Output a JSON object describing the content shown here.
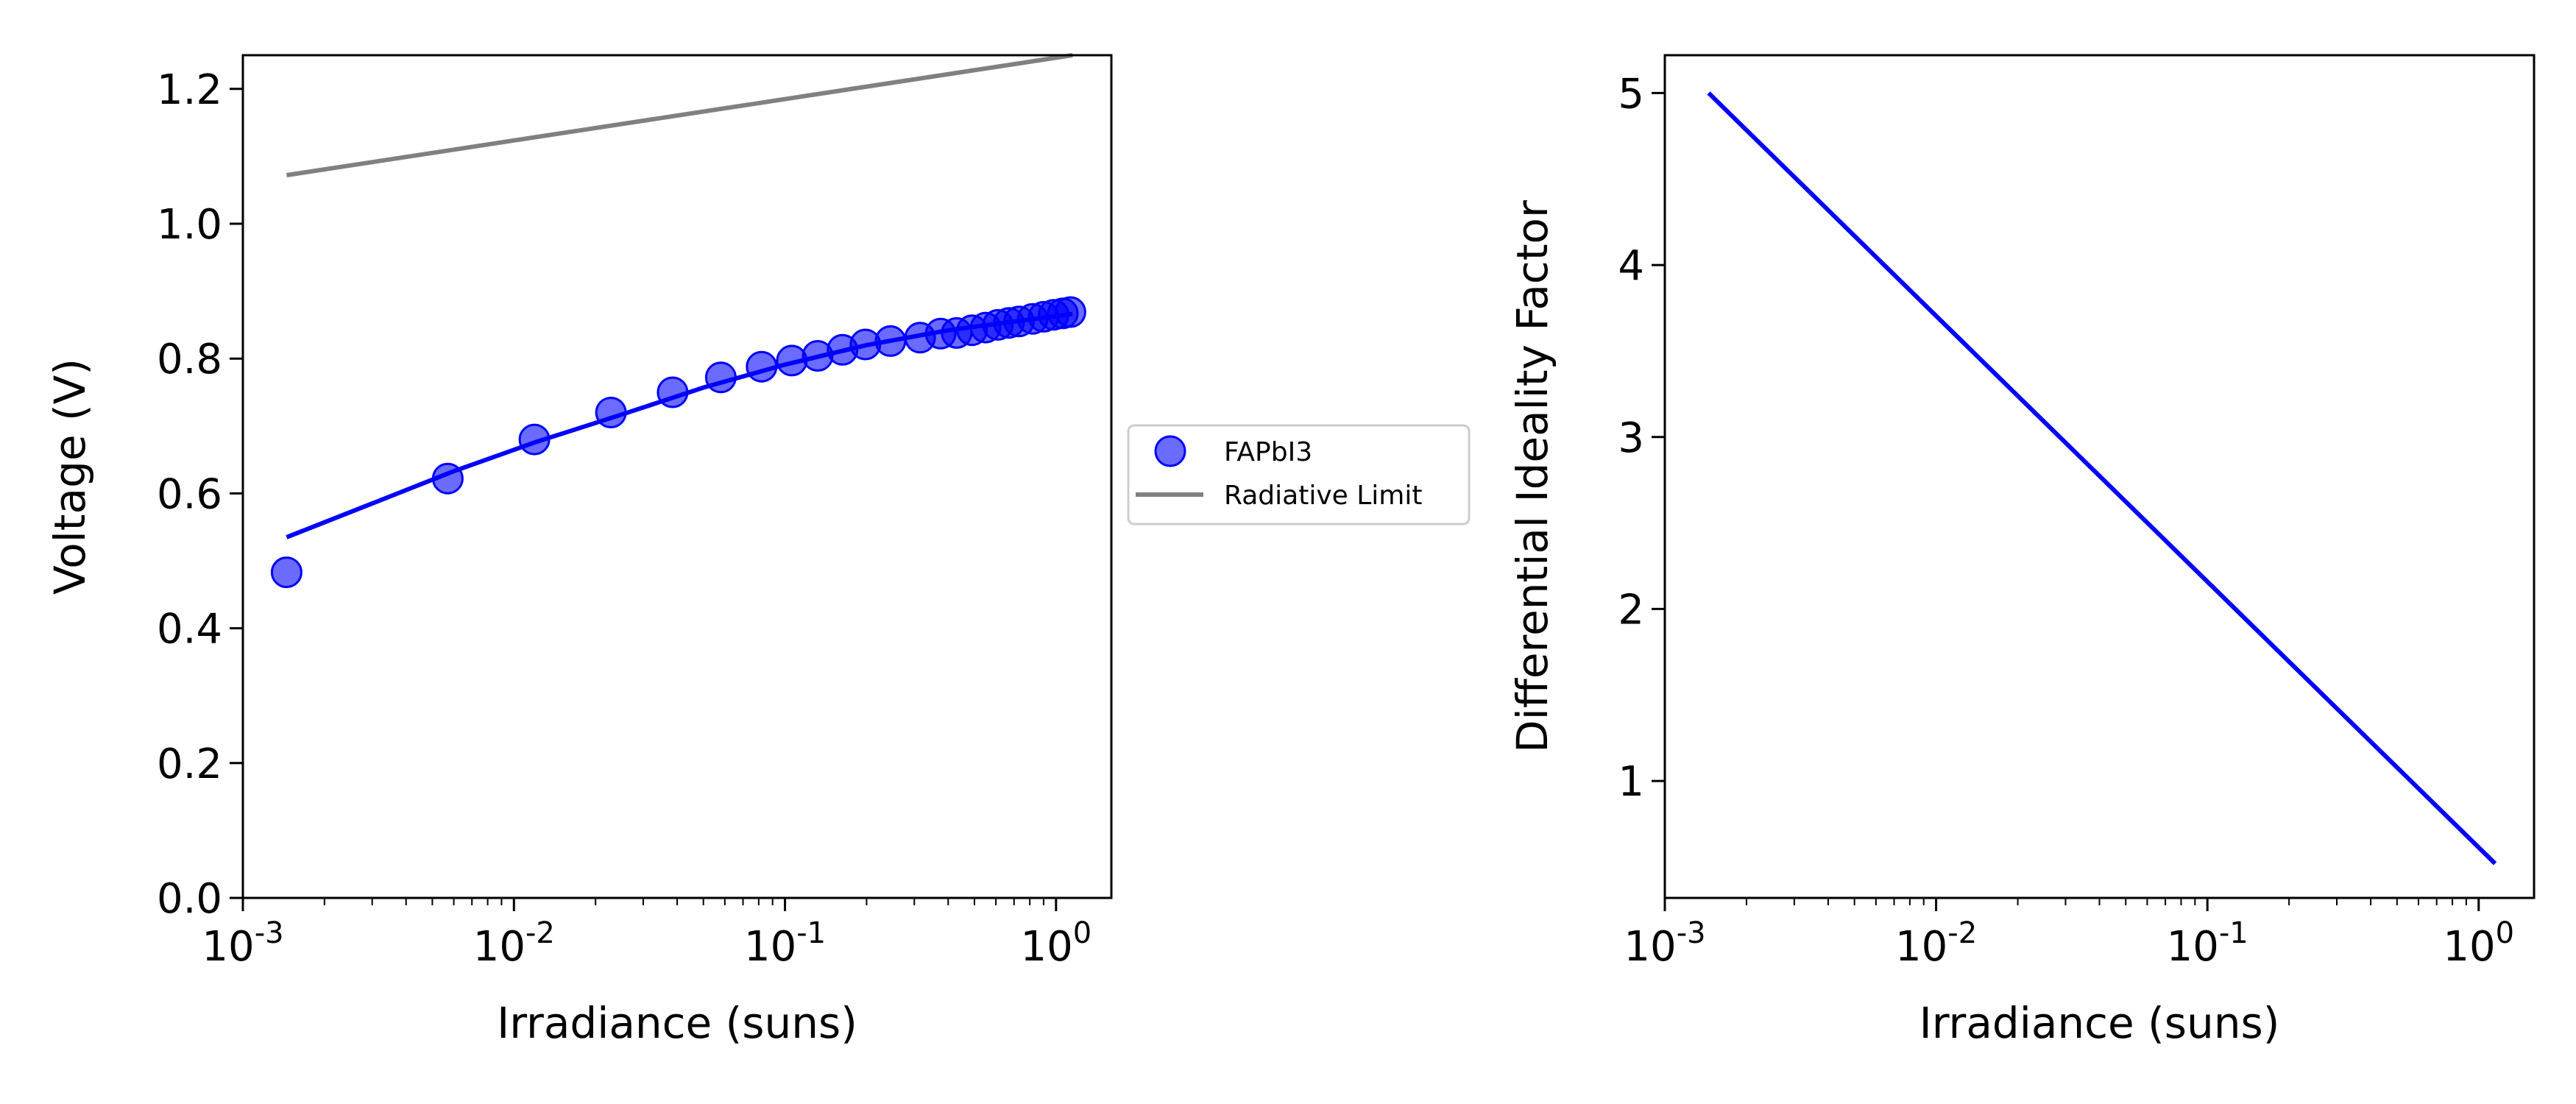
{
  "chart_data": [
    {
      "type": "scatter",
      "xscale": "log",
      "xlabel": "Irradiance (suns)",
      "ylabel": "Voltage (V)",
      "xlim": [
        0.001,
        1.6
      ],
      "ylim": [
        0.0,
        1.25
      ],
      "xticks": [
        "10^-3",
        "10^-2",
        "10^-1",
        "10^0"
      ],
      "yticks": [
        "0.0",
        "0.2",
        "0.4",
        "0.6",
        "0.8",
        "1.0",
        "1.2"
      ],
      "grid": false,
      "legend": {
        "placement": "outside-right-center",
        "entries": [
          "FAPbI3",
          "Radiative Limit"
        ]
      },
      "series": [
        {
          "name": "FAPbI3",
          "kind": "scatter",
          "color": "#0000ff",
          "points": [
            {
              "x": 0.00145,
              "y": 0.483
            },
            {
              "x": 0.0057,
              "y": 0.622
            },
            {
              "x": 0.0119,
              "y": 0.68
            },
            {
              "x": 0.0228,
              "y": 0.72
            },
            {
              "x": 0.0385,
              "y": 0.75
            },
            {
              "x": 0.058,
              "y": 0.772
            },
            {
              "x": 0.082,
              "y": 0.788
            },
            {
              "x": 0.106,
              "y": 0.797
            },
            {
              "x": 0.132,
              "y": 0.804
            },
            {
              "x": 0.163,
              "y": 0.813
            },
            {
              "x": 0.198,
              "y": 0.821
            },
            {
              "x": 0.245,
              "y": 0.826
            },
            {
              "x": 0.315,
              "y": 0.831
            },
            {
              "x": 0.375,
              "y": 0.837
            },
            {
              "x": 0.43,
              "y": 0.838
            },
            {
              "x": 0.49,
              "y": 0.842
            },
            {
              "x": 0.55,
              "y": 0.846
            },
            {
              "x": 0.61,
              "y": 0.85
            },
            {
              "x": 0.67,
              "y": 0.853
            },
            {
              "x": 0.73,
              "y": 0.855
            },
            {
              "x": 0.82,
              "y": 0.859
            },
            {
              "x": 0.9,
              "y": 0.862
            },
            {
              "x": 0.98,
              "y": 0.865
            },
            {
              "x": 1.06,
              "y": 0.867
            },
            {
              "x": 1.13,
              "y": 0.869
            }
          ]
        },
        {
          "name": "",
          "kind": "fit-line",
          "color": "#0000ff",
          "points": [
            {
              "x": 0.00145,
              "y": 0.535
            },
            {
              "x": 0.003,
              "y": 0.585
            },
            {
              "x": 0.006,
              "y": 0.633
            },
            {
              "x": 0.012,
              "y": 0.676
            },
            {
              "x": 0.025,
              "y": 0.717
            },
            {
              "x": 0.05,
              "y": 0.757
            },
            {
              "x": 0.1,
              "y": 0.791
            },
            {
              "x": 0.2,
              "y": 0.82
            },
            {
              "x": 0.4,
              "y": 0.842
            },
            {
              "x": 0.7,
              "y": 0.855
            },
            {
              "x": 1.15,
              "y": 0.866
            }
          ]
        },
        {
          "name": "Radiative Limit",
          "kind": "line",
          "color": "#808080",
          "points": [
            {
              "x": 0.00145,
              "y": 1.072
            },
            {
              "x": 1.15,
              "y": 1.25
            }
          ]
        }
      ]
    },
    {
      "type": "line",
      "xscale": "log",
      "xlabel": "Irradiance (suns)",
      "ylabel": "Differential Ideality Factor",
      "xlim": [
        0.001,
        1.6
      ],
      "ylim": [
        0.32,
        5.22
      ],
      "xticks": [
        "10^-3",
        "10^-2",
        "10^-1",
        "10^0"
      ],
      "yticks": [
        "1",
        "2",
        "3",
        "4",
        "5"
      ],
      "grid": false,
      "series": [
        {
          "name": "",
          "color": "#0000ff",
          "points": [
            {
              "x": 0.00145,
              "y": 5.0
            },
            {
              "x": 1.15,
              "y": 0.52
            }
          ]
        }
      ]
    }
  ]
}
